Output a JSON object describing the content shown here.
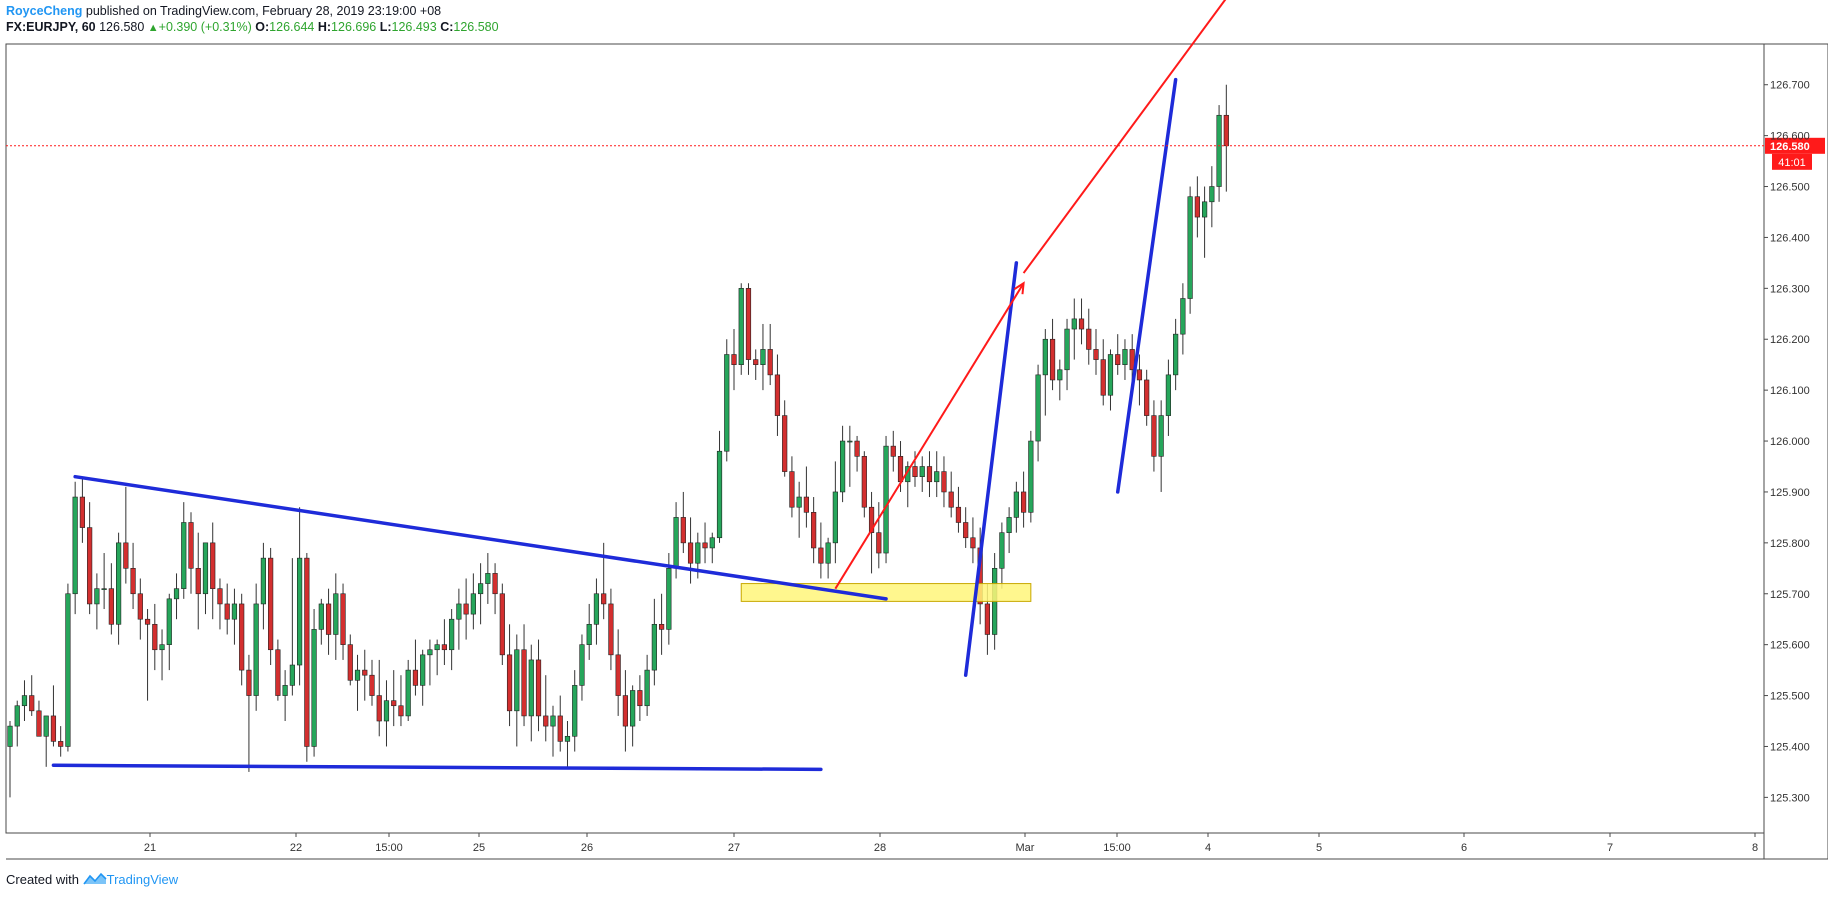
{
  "header": {
    "author": "RoyceCheng",
    "published": "published on TradingView.com, February 28, 2019 23:19:00 +08",
    "symbol": "FX:EURJPY, 60",
    "last": "126.580",
    "change": "+0.390 (+0.31%)",
    "o_label": "O:",
    "o": "126.644",
    "h_label": "H:",
    "h": "126.696",
    "l_label": "L:",
    "l": "126.493",
    "c_label": "C:",
    "c": "126.580"
  },
  "footer": {
    "created_with": "Created with",
    "brand": "TradingView"
  },
  "colors": {
    "up": "#26a65b",
    "down": "#d32f2f",
    "wick": "#333333",
    "trend": "#1e2bd9",
    "arrow": "#ff1a1a",
    "zone_fill": "#fff67a",
    "zone_stroke": "#c8a800",
    "price_tag": "#ff1a1a"
  },
  "chart_data": {
    "type": "candlestick",
    "symbol": "EURJPY",
    "timeframe": "60",
    "ylim": [
      125.23,
      126.78
    ],
    "yticks": [
      "125.300",
      "125.400",
      "125.500",
      "125.600",
      "125.700",
      "125.800",
      "125.900",
      "126.000",
      "126.100",
      "126.200",
      "126.300",
      "126.400",
      "126.500",
      "126.600",
      "126.700"
    ],
    "xticks": [
      "21",
      "22",
      "15:00",
      "25",
      "26",
      "27",
      "28",
      "Mar",
      "15:00",
      "4",
      "5",
      "6",
      "7",
      "8"
    ],
    "last_price": "126.580",
    "countdown": "41:01",
    "candles": [
      [
        125.4,
        125.45,
        125.3,
        125.44
      ],
      [
        125.44,
        125.49,
        125.4,
        125.48
      ],
      [
        125.48,
        125.53,
        125.45,
        125.5
      ],
      [
        125.5,
        125.54,
        125.46,
        125.47
      ],
      [
        125.47,
        125.49,
        125.42,
        125.42
      ],
      [
        125.42,
        125.46,
        125.36,
        125.46
      ],
      [
        125.46,
        125.52,
        125.4,
        125.41
      ],
      [
        125.41,
        125.44,
        125.38,
        125.4
      ],
      [
        125.4,
        125.72,
        125.39,
        125.7
      ],
      [
        125.7,
        125.92,
        125.66,
        125.89
      ],
      [
        125.89,
        125.93,
        125.8,
        125.83
      ],
      [
        125.83,
        125.88,
        125.66,
        125.68
      ],
      [
        125.68,
        125.74,
        125.63,
        125.71
      ],
      [
        125.71,
        125.78,
        125.67,
        125.71
      ],
      [
        125.71,
        125.76,
        125.62,
        125.64
      ],
      [
        125.64,
        125.82,
        125.6,
        125.8
      ],
      [
        125.8,
        125.91,
        125.72,
        125.75
      ],
      [
        125.75,
        125.8,
        125.67,
        125.7
      ],
      [
        125.7,
        125.73,
        125.61,
        125.65
      ],
      [
        125.65,
        125.67,
        125.49,
        125.64
      ],
      [
        125.64,
        125.68,
        125.55,
        125.59
      ],
      [
        125.59,
        125.63,
        125.53,
        125.6
      ],
      [
        125.6,
        125.7,
        125.55,
        125.69
      ],
      [
        125.69,
        125.74,
        125.65,
        125.71
      ],
      [
        125.71,
        125.88,
        125.69,
        125.84
      ],
      [
        125.84,
        125.86,
        125.7,
        125.75
      ],
      [
        125.75,
        125.82,
        125.63,
        125.7
      ],
      [
        125.7,
        125.79,
        125.66,
        125.8
      ],
      [
        125.8,
        125.84,
        125.65,
        125.71
      ],
      [
        125.71,
        125.73,
        125.63,
        125.68
      ],
      [
        125.68,
        125.72,
        125.62,
        125.65
      ],
      [
        125.65,
        125.71,
        125.6,
        125.68
      ],
      [
        125.68,
        125.7,
        125.52,
        125.55
      ],
      [
        125.55,
        125.58,
        125.35,
        125.5
      ],
      [
        125.5,
        125.72,
        125.47,
        125.68
      ],
      [
        125.68,
        125.8,
        125.63,
        125.77
      ],
      [
        125.77,
        125.79,
        125.56,
        125.59
      ],
      [
        125.59,
        125.61,
        125.49,
        125.5
      ],
      [
        125.5,
        125.55,
        125.45,
        125.52
      ],
      [
        125.52,
        125.77,
        125.5,
        125.56
      ],
      [
        125.56,
        125.87,
        125.52,
        125.77
      ],
      [
        125.77,
        125.78,
        125.37,
        125.4
      ],
      [
        125.4,
        125.67,
        125.38,
        125.63
      ],
      [
        125.63,
        125.69,
        125.6,
        125.68
      ],
      [
        125.68,
        125.71,
        125.58,
        125.62
      ],
      [
        125.62,
        125.74,
        125.57,
        125.7
      ],
      [
        125.7,
        125.72,
        125.57,
        125.6
      ],
      [
        125.6,
        125.62,
        125.52,
        125.53
      ],
      [
        125.53,
        125.58,
        125.47,
        125.55
      ],
      [
        125.55,
        125.59,
        125.49,
        125.54
      ],
      [
        125.54,
        125.57,
        125.48,
        125.5
      ],
      [
        125.5,
        125.57,
        125.42,
        125.45
      ],
      [
        125.45,
        125.53,
        125.4,
        125.49
      ],
      [
        125.49,
        125.55,
        125.44,
        125.48
      ],
      [
        125.48,
        125.54,
        125.44,
        125.46
      ],
      [
        125.46,
        125.57,
        125.45,
        125.55
      ],
      [
        125.55,
        125.61,
        125.5,
        125.52
      ],
      [
        125.52,
        125.59,
        125.48,
        125.58
      ],
      [
        125.58,
        125.61,
        125.52,
        125.59
      ],
      [
        125.59,
        125.61,
        125.54,
        125.6
      ],
      [
        125.6,
        125.65,
        125.56,
        125.59
      ],
      [
        125.59,
        125.67,
        125.55,
        125.65
      ],
      [
        125.65,
        125.71,
        125.59,
        125.68
      ],
      [
        125.68,
        125.73,
        125.61,
        125.66
      ],
      [
        125.66,
        125.74,
        125.63,
        125.7
      ],
      [
        125.7,
        125.76,
        125.64,
        125.72
      ],
      [
        125.72,
        125.78,
        125.68,
        125.74
      ],
      [
        125.74,
        125.76,
        125.66,
        125.7
      ],
      [
        125.7,
        125.72,
        125.56,
        125.58
      ],
      [
        125.58,
        125.64,
        125.44,
        125.47
      ],
      [
        125.47,
        125.62,
        125.4,
        125.59
      ],
      [
        125.59,
        125.64,
        125.44,
        125.46
      ],
      [
        125.46,
        125.6,
        125.41,
        125.57
      ],
      [
        125.57,
        125.61,
        125.43,
        125.46
      ],
      [
        125.46,
        125.54,
        125.41,
        125.44
      ],
      [
        125.44,
        125.48,
        125.38,
        125.46
      ],
      [
        125.46,
        125.5,
        125.39,
        125.41
      ],
      [
        125.41,
        125.45,
        125.36,
        125.42
      ],
      [
        125.42,
        125.55,
        125.39,
        125.52
      ],
      [
        125.52,
        125.62,
        125.49,
        125.6
      ],
      [
        125.6,
        125.68,
        125.57,
        125.64
      ],
      [
        125.64,
        125.73,
        125.6,
        125.7
      ],
      [
        125.7,
        125.8,
        125.65,
        125.68
      ],
      [
        125.68,
        125.71,
        125.55,
        125.58
      ],
      [
        125.58,
        125.63,
        125.46,
        125.5
      ],
      [
        125.5,
        125.55,
        125.39,
        125.44
      ],
      [
        125.44,
        125.52,
        125.4,
        125.51
      ],
      [
        125.51,
        125.54,
        125.45,
        125.48
      ],
      [
        125.48,
        125.58,
        125.46,
        125.55
      ],
      [
        125.55,
        125.69,
        125.52,
        125.64
      ],
      [
        125.64,
        125.7,
        125.58,
        125.63
      ],
      [
        125.63,
        125.78,
        125.6,
        125.75
      ],
      [
        125.75,
        125.88,
        125.73,
        125.85
      ],
      [
        125.85,
        125.9,
        125.78,
        125.8
      ],
      [
        125.8,
        125.85,
        125.72,
        125.76
      ],
      [
        125.76,
        125.82,
        125.73,
        125.8
      ],
      [
        125.8,
        125.84,
        125.76,
        125.79
      ],
      [
        125.79,
        125.82,
        125.76,
        125.81
      ],
      [
        125.81,
        126.02,
        125.8,
        125.98
      ],
      [
        125.98,
        126.2,
        125.96,
        126.17
      ],
      [
        126.17,
        126.22,
        126.1,
        126.15
      ],
      [
        126.15,
        126.31,
        126.13,
        126.3
      ],
      [
        126.3,
        126.31,
        126.13,
        126.16
      ],
      [
        126.16,
        126.18,
        126.12,
        126.15
      ],
      [
        126.15,
        126.23,
        126.1,
        126.18
      ],
      [
        126.18,
        126.23,
        126.11,
        126.13
      ],
      [
        126.13,
        126.17,
        126.01,
        126.05
      ],
      [
        126.05,
        126.08,
        125.93,
        125.94
      ],
      [
        125.94,
        125.97,
        125.85,
        125.87
      ],
      [
        125.87,
        125.92,
        125.81,
        125.89
      ],
      [
        125.89,
        125.95,
        125.83,
        125.86
      ],
      [
        125.86,
        125.89,
        125.76,
        125.79
      ],
      [
        125.79,
        125.84,
        125.73,
        125.76
      ],
      [
        125.76,
        125.81,
        125.73,
        125.8
      ],
      [
        125.8,
        125.96,
        125.76,
        125.9
      ],
      [
        125.9,
        126.03,
        125.88,
        126.0
      ],
      [
        126.0,
        126.03,
        125.91,
        126.0
      ],
      [
        126.0,
        126.01,
        125.94,
        125.97
      ],
      [
        125.97,
        125.98,
        125.85,
        125.87
      ],
      [
        125.87,
        125.9,
        125.74,
        125.82
      ],
      [
        125.82,
        125.88,
        125.75,
        125.78
      ],
      [
        125.78,
        126.01,
        125.76,
        125.99
      ],
      [
        125.99,
        126.02,
        125.94,
        125.97
      ],
      [
        125.97,
        126.0,
        125.9,
        125.92
      ],
      [
        125.92,
        125.96,
        125.87,
        125.95
      ],
      [
        125.95,
        125.98,
        125.91,
        125.93
      ],
      [
        125.93,
        125.97,
        125.9,
        125.95
      ],
      [
        125.95,
        125.98,
        125.89,
        125.92
      ],
      [
        125.92,
        125.98,
        125.89,
        125.94
      ],
      [
        125.94,
        125.97,
        125.87,
        125.9
      ],
      [
        125.9,
        125.94,
        125.85,
        125.87
      ],
      [
        125.87,
        125.91,
        125.82,
        125.84
      ],
      [
        125.84,
        125.87,
        125.79,
        125.81
      ],
      [
        125.81,
        125.85,
        125.76,
        125.79
      ],
      [
        125.79,
        125.83,
        125.64,
        125.68
      ],
      [
        125.68,
        125.72,
        125.58,
        125.62
      ],
      [
        125.62,
        125.78,
        125.59,
        125.75
      ],
      [
        125.75,
        125.84,
        125.71,
        125.82
      ],
      [
        125.82,
        125.87,
        125.78,
        125.85
      ],
      [
        125.85,
        125.92,
        125.82,
        125.9
      ],
      [
        125.9,
        125.94,
        125.83,
        125.86
      ],
      [
        125.86,
        126.02,
        125.84,
        126.0
      ],
      [
        126.0,
        126.15,
        125.96,
        126.13
      ],
      [
        126.13,
        126.22,
        126.05,
        126.2
      ],
      [
        126.2,
        126.24,
        126.1,
        126.12
      ],
      [
        126.12,
        126.16,
        126.08,
        126.14
      ],
      [
        126.14,
        126.24,
        126.1,
        126.22
      ],
      [
        126.22,
        126.28,
        126.16,
        126.24
      ],
      [
        126.24,
        126.28,
        126.19,
        126.22
      ],
      [
        126.22,
        126.26,
        126.15,
        126.18
      ],
      [
        126.18,
        126.22,
        126.13,
        126.16
      ],
      [
        126.16,
        126.2,
        126.07,
        126.09
      ],
      [
        126.09,
        126.18,
        126.06,
        126.17
      ],
      [
        126.17,
        126.21,
        126.13,
        126.15
      ],
      [
        126.15,
        126.2,
        126.12,
        126.18
      ],
      [
        126.18,
        126.21,
        126.1,
        126.14
      ],
      [
        126.14,
        126.17,
        126.07,
        126.12
      ],
      [
        126.12,
        126.14,
        126.03,
        126.05
      ],
      [
        126.05,
        126.08,
        125.94,
        125.97
      ],
      [
        125.97,
        126.08,
        125.9,
        126.05
      ],
      [
        126.05,
        126.16,
        126.01,
        126.13
      ],
      [
        126.13,
        126.24,
        126.1,
        126.21
      ],
      [
        126.21,
        126.31,
        126.17,
        126.28
      ],
      [
        126.28,
        126.5,
        126.25,
        126.48
      ],
      [
        126.48,
        126.52,
        126.4,
        126.44
      ],
      [
        126.44,
        126.5,
        126.36,
        126.47
      ],
      [
        126.47,
        126.54,
        126.42,
        126.5
      ],
      [
        126.5,
        126.66,
        126.47,
        126.64
      ],
      [
        126.64,
        126.7,
        126.49,
        126.58
      ]
    ],
    "annotations": {
      "trendlines": [
        {
          "from": [
            9,
            125.93
          ],
          "to": [
            121,
            125.69
          ]
        },
        {
          "from": [
            6,
            125.363
          ],
          "to": [
            112,
            125.355
          ]
        },
        {
          "from": [
            132,
            125.54
          ],
          "to": [
            139,
            126.35
          ]
        },
        {
          "from": [
            153,
            125.9
          ],
          "to": [
            161,
            126.71
          ]
        }
      ],
      "arrows": [
        {
          "from": [
            114,
            125.71
          ],
          "to": [
            140,
            126.31
          ]
        },
        {
          "from": [
            140,
            126.33
          ],
          "to": [
            168,
            126.87
          ]
        }
      ],
      "zone": {
        "x0": 101,
        "x1": 141,
        "y0": 125.685,
        "y1": 125.72
      }
    }
  }
}
